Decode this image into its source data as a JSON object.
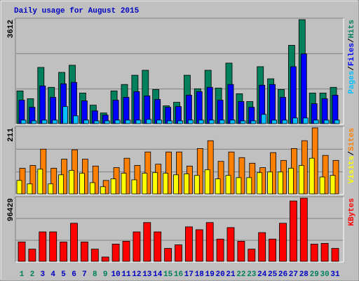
{
  "chart_data": [
    {
      "type": "bar",
      "title": "Daily usage for August 2015",
      "categories": [
        "1",
        "2",
        "3",
        "4",
        "5",
        "6",
        "7",
        "8",
        "9",
        "10",
        "11",
        "12",
        "13",
        "14",
        "15",
        "16",
        "17",
        "18",
        "19",
        "20",
        "21",
        "22",
        "23",
        "24",
        "25",
        "26",
        "27",
        "28",
        "29",
        "30",
        "31"
      ],
      "category_colors": [
        "#00805c",
        "#00805c",
        "#0000c0",
        "#0000c0",
        "#0000c0",
        "#0000c0",
        "#0000c0",
        "#00805c",
        "#00805c",
        "#0000c0",
        "#0000c0",
        "#0000c0",
        "#0000c0",
        "#0000c0",
        "#00805c",
        "#00805c",
        "#0000c0",
        "#0000c0",
        "#0000c0",
        "#0000c0",
        "#0000c0",
        "#00805c",
        "#00805c",
        "#0000c0",
        "#0000c0",
        "#0000c0",
        "#0000c0",
        "#0000c0",
        "#00805c",
        "#00805c",
        "#0000c0"
      ],
      "legend_separator": "/",
      "ylim": [
        0,
        3612
      ],
      "yticks": [
        3612
      ],
      "grid": true,
      "series": [
        {
          "name": "Hits",
          "color": "#00805c",
          "values": [
            1138,
            866,
            1954,
            1262,
            1781,
            2029,
            1064,
            643,
            371,
            1138,
            1361,
            1682,
            1855,
            1188,
            619,
            742,
            1682,
            1212,
            1855,
            1237,
            2103,
            1039,
            767,
            1979,
            1559,
            1188,
            2721,
            3612,
            1064,
            1064,
            1262
          ]
        },
        {
          "name": "Files",
          "color": "#0000ff",
          "values": [
            816,
            569,
            1311,
            915,
            1385,
            1435,
            792,
            445,
            297,
            816,
            915,
            1113,
            965,
            841,
            569,
            594,
            990,
            1113,
            1262,
            816,
            1361,
            767,
            569,
            1336,
            1361,
            915,
            1979,
            2425,
            693,
            866,
            990
          ]
        },
        {
          "name": "Pages",
          "color": "#00c0ff",
          "values": [
            124,
            99,
            124,
            124,
            594,
            272,
            124,
            99,
            99,
            124,
            124,
            124,
            148,
            124,
            99,
            99,
            124,
            124,
            124,
            124,
            124,
            99,
            99,
            322,
            124,
            124,
            198,
            198,
            124,
            124,
            124
          ]
        }
      ]
    },
    {
      "type": "bar",
      "legend_separator": "/",
      "ylim": [
        0,
        211
      ],
      "yticks": [
        211
      ],
      "grid": true,
      "series": [
        {
          "name": "Sites",
          "color": "#ff8000",
          "values": [
            82,
            91,
            143,
            82,
            111,
            141,
            111,
            89,
            43,
            84,
            114,
            91,
            134,
            95,
            134,
            134,
            89,
            145,
            170,
            104,
            134,
            116,
            98,
            84,
            132,
            107,
            145,
            170,
            211,
            123,
            107
          ]
        },
        {
          "name": "Visits",
          "color": "#ffff00",
          "values": [
            43,
            32,
            79,
            32,
            61,
            75,
            66,
            36,
            23,
            48,
            66,
            45,
            66,
            68,
            66,
            61,
            64,
            59,
            77,
            48,
            59,
            52,
            52,
            68,
            70,
            70,
            82,
            91,
            114,
            54,
            59
          ]
        }
      ]
    },
    {
      "type": "bar",
      "ylim": [
        0,
        96429
      ],
      "yticks": [
        96429
      ],
      "grid": true,
      "series": [
        {
          "name": "KBytes",
          "color": "#ff0000",
          "values": [
            29592,
            18632,
            44936,
            44936,
            29592,
            58088,
            29592,
            18632,
            6576,
            26304,
            30688,
            44936,
            59184,
            44936,
            19728,
            25208,
            52608,
            48224,
            59184,
            33976,
            51512,
            30688,
            18632,
            43840,
            33976,
            58088,
            92064,
            96429,
            26304,
            27400,
            19728
          ]
        }
      ]
    }
  ]
}
